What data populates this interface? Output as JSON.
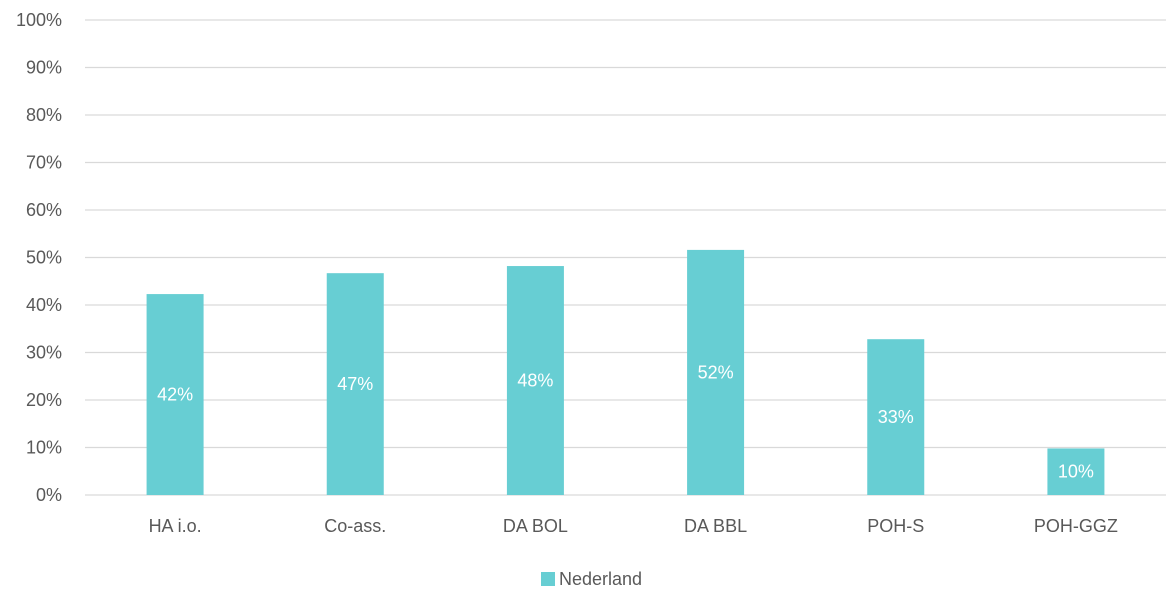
{
  "chart_data": {
    "type": "bar",
    "categories": [
      "HA i.o.",
      "Co-ass.",
      "DA BOL",
      "DA BBL",
      "POH-S",
      "POH-GGZ"
    ],
    "series": [
      {
        "name": "Nederland",
        "values": [
          42.3,
          46.7,
          48.2,
          51.6,
          32.8,
          9.8
        ],
        "labels": [
          "42%",
          "47%",
          "48%",
          "52%",
          "33%",
          "10%"
        ],
        "color": "#67CED3"
      }
    ],
    "y_ticks": [
      "0%",
      "10%",
      "20%",
      "30%",
      "40%",
      "50%",
      "60%",
      "70%",
      "80%",
      "90%",
      "100%"
    ],
    "ylim": [
      0,
      100
    ],
    "grid": true,
    "legend_position": "bottom",
    "gridline_color": "#D9D9D9",
    "text_color": "#595959"
  }
}
